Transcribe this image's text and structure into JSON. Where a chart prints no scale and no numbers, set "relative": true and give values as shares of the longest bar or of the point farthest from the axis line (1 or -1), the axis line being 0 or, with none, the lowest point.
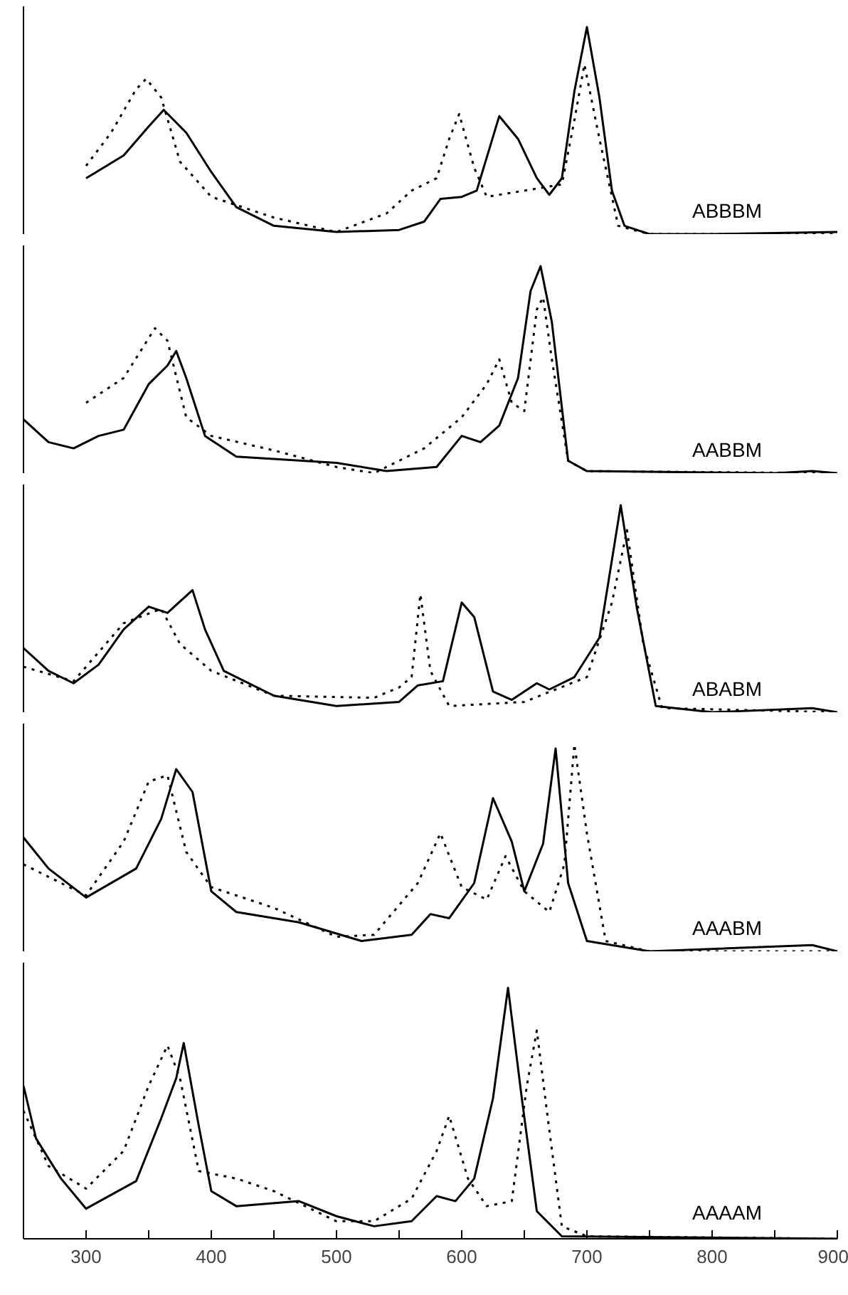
{
  "chart_data": [
    {
      "type": "line",
      "relative": true,
      "xlim": [
        250,
        900
      ],
      "tick_labels": false,
      "annotations": [
        "ABBBM"
      ],
      "series": [
        {
          "color": "#000000",
          "line_style": "solid",
          "x": [
            300,
            330,
            350,
            362,
            380,
            400,
            420,
            450,
            500,
            550,
            570,
            583,
            600,
            612,
            630,
            645,
            660,
            670,
            680,
            690,
            700,
            710,
            720,
            730,
            750,
            800,
            900
          ],
          "values": [
            0.27,
            0.38,
            0.52,
            0.6,
            0.49,
            0.3,
            0.13,
            0.04,
            0.01,
            0.02,
            0.06,
            0.17,
            0.18,
            0.21,
            0.57,
            0.46,
            0.27,
            0.19,
            0.27,
            0.69,
            1,
            0.66,
            0.21,
            0.04,
            0,
            0,
            0.01
          ]
        },
        {
          "color": "#000000",
          "line_style": "dotted",
          "x": [
            300,
            320,
            340,
            348,
            360,
            375,
            400,
            450,
            500,
            540,
            560,
            580,
            590,
            598,
            610,
            620,
            650,
            680,
            690,
            698,
            710,
            725,
            750,
            900
          ],
          "values": [
            0.33,
            0.49,
            0.7,
            0.75,
            0.66,
            0.35,
            0.18,
            0.08,
            0.01,
            0.1,
            0.21,
            0.27,
            0.46,
            0.58,
            0.32,
            0.18,
            0.21,
            0.24,
            0.55,
            0.82,
            0.46,
            0.04,
            0,
            0
          ]
        }
      ]
    },
    {
      "type": "line",
      "relative": true,
      "xlim": [
        250,
        900
      ],
      "tick_labels": false,
      "annotations": [
        "AABBM"
      ],
      "series": [
        {
          "color": "#000000",
          "line_style": "solid",
          "x": [
            250,
            270,
            290,
            310,
            330,
            350,
            365,
            372,
            380,
            395,
            420,
            500,
            540,
            580,
            600,
            615,
            630,
            645,
            655,
            663,
            672,
            685,
            700,
            850,
            880,
            900
          ],
          "values": [
            0.26,
            0.15,
            0.12,
            0.18,
            0.21,
            0.43,
            0.52,
            0.59,
            0.46,
            0.18,
            0.08,
            0.05,
            0.01,
            0.03,
            0.18,
            0.15,
            0.23,
            0.46,
            0.88,
            1,
            0.73,
            0.06,
            0.01,
            0,
            0.01,
            0
          ]
        },
        {
          "color": "#000000",
          "line_style": "dotted",
          "x": [
            300,
            330,
            355,
            365,
            380,
            400,
            450,
            500,
            530,
            570,
            600,
            620,
            630,
            640,
            650,
            660,
            665,
            672,
            685,
            700,
            900
          ],
          "values": [
            0.34,
            0.46,
            0.7,
            0.64,
            0.27,
            0.18,
            0.11,
            0.03,
            0,
            0.12,
            0.27,
            0.43,
            0.55,
            0.34,
            0.3,
            0.79,
            0.85,
            0.55,
            0.06,
            0.01,
            0
          ]
        }
      ]
    },
    {
      "type": "line",
      "relative": true,
      "xlim": [
        250,
        900
      ],
      "tick_labels": false,
      "annotations": [
        "ABABM"
      ],
      "series": [
        {
          "color": "#000000",
          "line_style": "solid",
          "x": [
            250,
            270,
            290,
            310,
            330,
            350,
            365,
            385,
            395,
            410,
            450,
            500,
            550,
            565,
            585,
            600,
            610,
            625,
            640,
            660,
            670,
            690,
            710,
            727,
            740,
            755,
            800,
            880,
            900
          ],
          "values": [
            0.31,
            0.2,
            0.14,
            0.23,
            0.4,
            0.51,
            0.48,
            0.59,
            0.4,
            0.2,
            0.08,
            0.03,
            0.05,
            0.13,
            0.15,
            0.53,
            0.46,
            0.1,
            0.06,
            0.14,
            0.11,
            0.17,
            0.36,
            1,
            0.5,
            0.03,
            0,
            0.02,
            0
          ]
        },
        {
          "color": "#000000",
          "line_style": "dotted",
          "x": [
            250,
            290,
            330,
            360,
            375,
            400,
            450,
            530,
            550,
            560,
            567,
            575,
            590,
            650,
            700,
            720,
            732,
            745,
            760,
            900
          ],
          "values": [
            0.22,
            0.15,
            0.43,
            0.5,
            0.33,
            0.2,
            0.08,
            0.07,
            0.12,
            0.17,
            0.57,
            0.2,
            0.03,
            0.05,
            0.17,
            0.53,
            0.88,
            0.33,
            0.02,
            0
          ]
        }
      ]
    },
    {
      "type": "line",
      "relative": true,
      "xlim": [
        250,
        900
      ],
      "tick_labels": false,
      "annotations": [
        "AAABM"
      ],
      "series": [
        {
          "color": "#000000",
          "line_style": "solid",
          "x": [
            250,
            270,
            300,
            340,
            360,
            372,
            385,
            400,
            420,
            470,
            520,
            560,
            575,
            590,
            610,
            625,
            640,
            650,
            665,
            675,
            685,
            700,
            750,
            880,
            900
          ],
          "values": [
            0.55,
            0.4,
            0.26,
            0.4,
            0.64,
            0.88,
            0.77,
            0.29,
            0.19,
            0.14,
            0.05,
            0.08,
            0.18,
            0.16,
            0.33,
            0.74,
            0.53,
            0.29,
            0.52,
            0.98,
            0.33,
            0.05,
            0,
            0.03,
            0
          ]
        },
        {
          "color": "#000000",
          "line_style": "dotted",
          "x": [
            250,
            300,
            330,
            350,
            365,
            380,
            400,
            450,
            500,
            530,
            565,
            583,
            600,
            620,
            635,
            650,
            670,
            682,
            690,
            700,
            715,
            750,
            900
          ],
          "values": [
            0.42,
            0.27,
            0.53,
            0.82,
            0.85,
            0.48,
            0.31,
            0.21,
            0.07,
            0.08,
            0.33,
            0.57,
            0.31,
            0.25,
            0.46,
            0.29,
            0.19,
            0.42,
            1,
            0.57,
            0.05,
            0,
            0
          ]
        }
      ]
    },
    {
      "type": "line",
      "relative": true,
      "xlim": [
        250,
        900
      ],
      "tick_labels": "x",
      "xticks": [
        {
          "value": 250,
          "label": null
        },
        300,
        {
          "value": 350,
          "label": null
        },
        400,
        {
          "value": 450,
          "label": null
        },
        500,
        {
          "value": 550,
          "label": null
        },
        600,
        {
          "value": 650,
          "label": null
        },
        700,
        {
          "value": 750,
          "label": null
        },
        800,
        {
          "value": 850,
          "label": null
        },
        900
      ],
      "annotations": [
        "AAAAM"
      ],
      "series": [
        {
          "color": "#000000",
          "line_style": "solid",
          "x": [
            250,
            260,
            280,
            300,
            340,
            360,
            372,
            378,
            390,
            400,
            420,
            470,
            500,
            530,
            560,
            580,
            595,
            610,
            625,
            637,
            648,
            660,
            680,
            900
          ],
          "values": [
            0.61,
            0.4,
            0.24,
            0.12,
            0.23,
            0.48,
            0.64,
            0.78,
            0.45,
            0.19,
            0.13,
            0.15,
            0.09,
            0.05,
            0.07,
            0.17,
            0.15,
            0.24,
            0.56,
            1,
            0.56,
            0.11,
            0.01,
            0
          ]
        },
        {
          "color": "#000000",
          "line_style": "dotted",
          "x": [
            250,
            270,
            300,
            330,
            350,
            365,
            375,
            390,
            420,
            450,
            500,
            530,
            560,
            580,
            590,
            605,
            620,
            640,
            652,
            660,
            668,
            680,
            700,
            900
          ],
          "values": [
            0.51,
            0.29,
            0.2,
            0.35,
            0.61,
            0.77,
            0.64,
            0.27,
            0.24,
            0.19,
            0.07,
            0.07,
            0.16,
            0.35,
            0.49,
            0.24,
            0.13,
            0.15,
            0.61,
            0.83,
            0.51,
            0.05,
            0.01,
            0
          ]
        }
      ]
    }
  ]
}
